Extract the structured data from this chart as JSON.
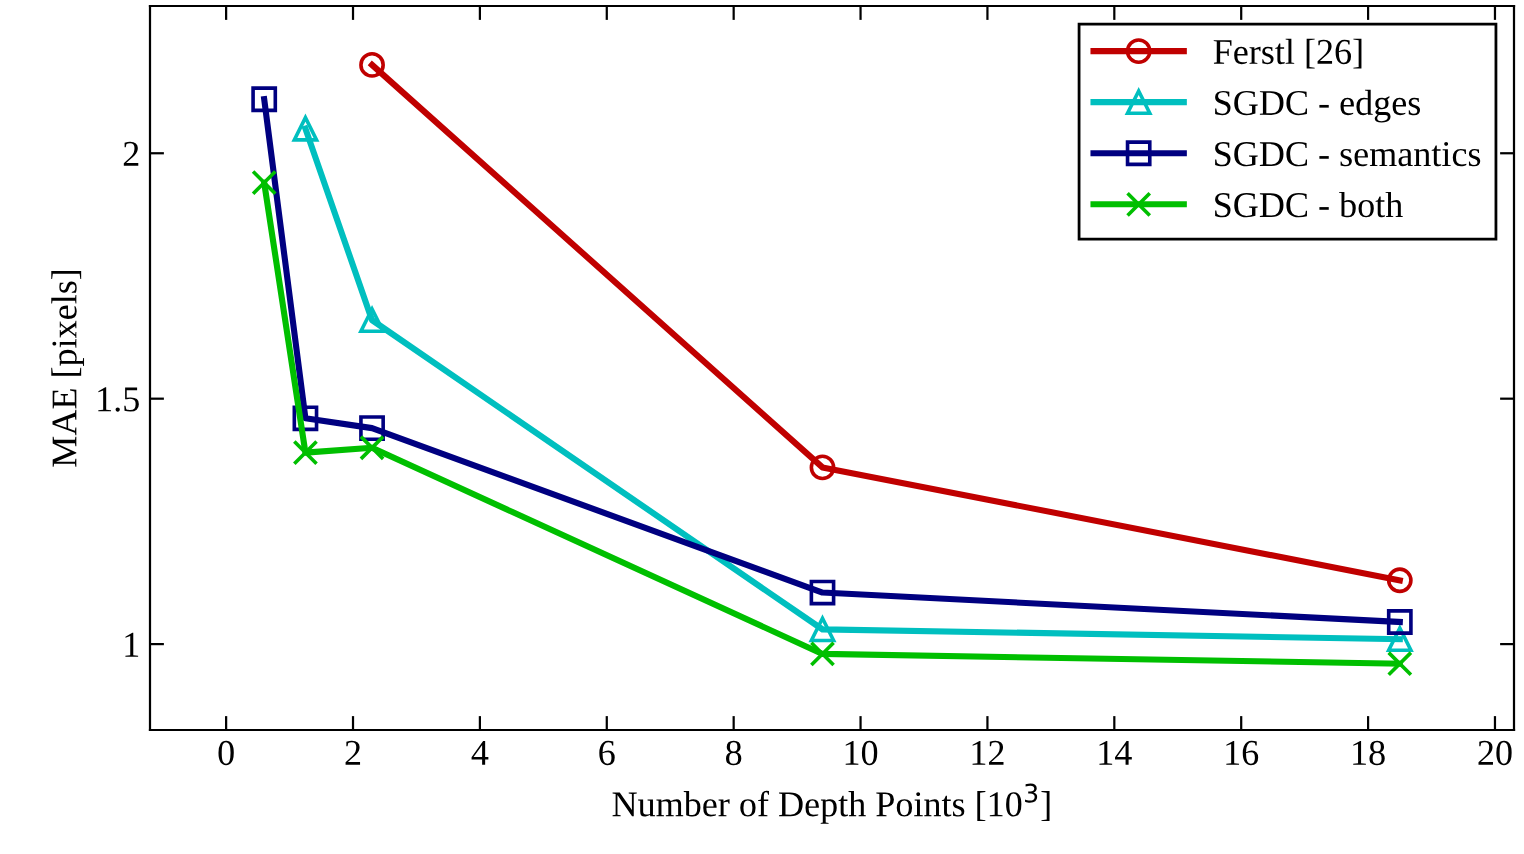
{
  "chart_data": {
    "type": "line",
    "xlabel": "Number of Depth Points [10$^{3}$]",
    "ylabel": "MAE [pixels]",
    "xlim": [
      -1.2,
      20.3
    ],
    "ylim": [
      0.825,
      2.3
    ],
    "xticks": [
      0,
      2,
      4,
      6,
      8,
      10,
      12,
      14,
      16,
      18,
      20
    ],
    "yticks": [
      1,
      1.5,
      2
    ],
    "grid": false,
    "legend": "top right",
    "line_style": "solid",
    "series": [
      {
        "name": "Ferstl [26]",
        "color": "#c00000",
        "marker": "circle",
        "x": [
          2.3,
          9.4,
          18.5
        ],
        "values": [
          2.18,
          1.36,
          1.13
        ]
      },
      {
        "name": "SGDC - edges",
        "color": "#00bfbf",
        "marker": "triangle",
        "x": [
          1.25,
          2.3,
          9.4,
          18.5
        ],
        "values": [
          2.05,
          1.66,
          1.03,
          1.01
        ]
      },
      {
        "name": "SGDC - semantics",
        "color": "#000080",
        "marker": "square",
        "x": [
          0.6,
          1.25,
          2.3,
          9.4,
          18.5
        ],
        "values": [
          2.11,
          1.46,
          1.44,
          1.105,
          1.045
        ]
      },
      {
        "name": "SGDC - both",
        "color": "#00bf00",
        "marker": "cross",
        "x": [
          0.6,
          1.25,
          2.3,
          9.4,
          18.5
        ],
        "values": [
          1.94,
          1.39,
          1.4,
          0.98,
          0.96
        ]
      }
    ]
  }
}
